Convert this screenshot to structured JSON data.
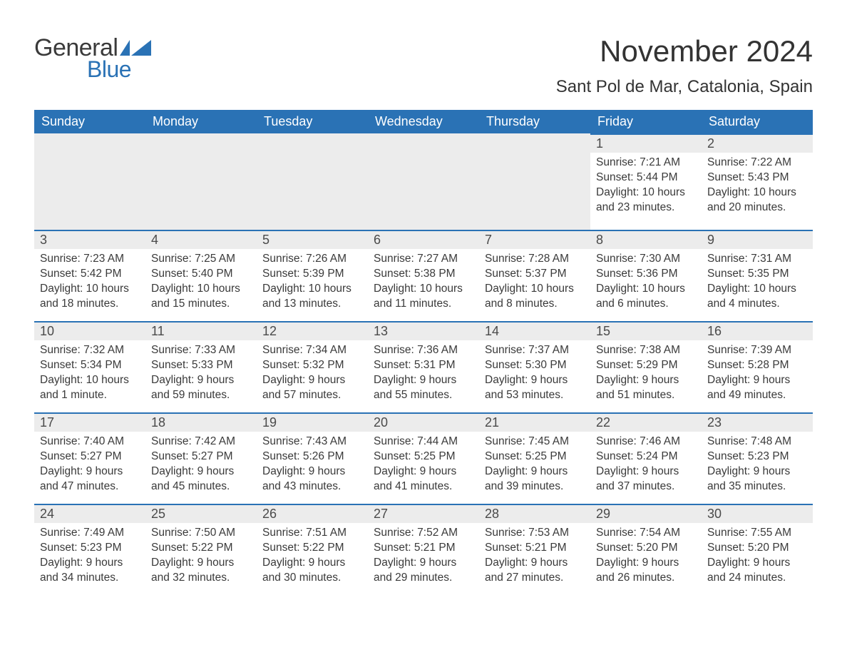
{
  "brand": {
    "general": "General",
    "blue": "Blue"
  },
  "title": "November 2024",
  "location": "Sant Pol de Mar, Catalonia, Spain",
  "colors": {
    "header_bg": "#2a72b5",
    "header_text": "#ffffff",
    "daynum_bg": "#ececec",
    "border_top": "#2a72b5",
    "body_text": "#3a3a3a",
    "page_bg": "#ffffff",
    "logo_blue": "#2a72b5"
  },
  "weekdays": [
    "Sunday",
    "Monday",
    "Tuesday",
    "Wednesday",
    "Thursday",
    "Friday",
    "Saturday"
  ],
  "weeks": [
    [
      null,
      null,
      null,
      null,
      null,
      {
        "n": "1",
        "sr": "Sunrise: 7:21 AM",
        "ss": "Sunset: 5:44 PM",
        "dl": "Daylight: 10 hours and 23 minutes."
      },
      {
        "n": "2",
        "sr": "Sunrise: 7:22 AM",
        "ss": "Sunset: 5:43 PM",
        "dl": "Daylight: 10 hours and 20 minutes."
      }
    ],
    [
      {
        "n": "3",
        "sr": "Sunrise: 7:23 AM",
        "ss": "Sunset: 5:42 PM",
        "dl": "Daylight: 10 hours and 18 minutes."
      },
      {
        "n": "4",
        "sr": "Sunrise: 7:25 AM",
        "ss": "Sunset: 5:40 PM",
        "dl": "Daylight: 10 hours and 15 minutes."
      },
      {
        "n": "5",
        "sr": "Sunrise: 7:26 AM",
        "ss": "Sunset: 5:39 PM",
        "dl": "Daylight: 10 hours and 13 minutes."
      },
      {
        "n": "6",
        "sr": "Sunrise: 7:27 AM",
        "ss": "Sunset: 5:38 PM",
        "dl": "Daylight: 10 hours and 11 minutes."
      },
      {
        "n": "7",
        "sr": "Sunrise: 7:28 AM",
        "ss": "Sunset: 5:37 PM",
        "dl": "Daylight: 10 hours and 8 minutes."
      },
      {
        "n": "8",
        "sr": "Sunrise: 7:30 AM",
        "ss": "Sunset: 5:36 PM",
        "dl": "Daylight: 10 hours and 6 minutes."
      },
      {
        "n": "9",
        "sr": "Sunrise: 7:31 AM",
        "ss": "Sunset: 5:35 PM",
        "dl": "Daylight: 10 hours and 4 minutes."
      }
    ],
    [
      {
        "n": "10",
        "sr": "Sunrise: 7:32 AM",
        "ss": "Sunset: 5:34 PM",
        "dl": "Daylight: 10 hours and 1 minute."
      },
      {
        "n": "11",
        "sr": "Sunrise: 7:33 AM",
        "ss": "Sunset: 5:33 PM",
        "dl": "Daylight: 9 hours and 59 minutes."
      },
      {
        "n": "12",
        "sr": "Sunrise: 7:34 AM",
        "ss": "Sunset: 5:32 PM",
        "dl": "Daylight: 9 hours and 57 minutes."
      },
      {
        "n": "13",
        "sr": "Sunrise: 7:36 AM",
        "ss": "Sunset: 5:31 PM",
        "dl": "Daylight: 9 hours and 55 minutes."
      },
      {
        "n": "14",
        "sr": "Sunrise: 7:37 AM",
        "ss": "Sunset: 5:30 PM",
        "dl": "Daylight: 9 hours and 53 minutes."
      },
      {
        "n": "15",
        "sr": "Sunrise: 7:38 AM",
        "ss": "Sunset: 5:29 PM",
        "dl": "Daylight: 9 hours and 51 minutes."
      },
      {
        "n": "16",
        "sr": "Sunrise: 7:39 AM",
        "ss": "Sunset: 5:28 PM",
        "dl": "Daylight: 9 hours and 49 minutes."
      }
    ],
    [
      {
        "n": "17",
        "sr": "Sunrise: 7:40 AM",
        "ss": "Sunset: 5:27 PM",
        "dl": "Daylight: 9 hours and 47 minutes."
      },
      {
        "n": "18",
        "sr": "Sunrise: 7:42 AM",
        "ss": "Sunset: 5:27 PM",
        "dl": "Daylight: 9 hours and 45 minutes."
      },
      {
        "n": "19",
        "sr": "Sunrise: 7:43 AM",
        "ss": "Sunset: 5:26 PM",
        "dl": "Daylight: 9 hours and 43 minutes."
      },
      {
        "n": "20",
        "sr": "Sunrise: 7:44 AM",
        "ss": "Sunset: 5:25 PM",
        "dl": "Daylight: 9 hours and 41 minutes."
      },
      {
        "n": "21",
        "sr": "Sunrise: 7:45 AM",
        "ss": "Sunset: 5:25 PM",
        "dl": "Daylight: 9 hours and 39 minutes."
      },
      {
        "n": "22",
        "sr": "Sunrise: 7:46 AM",
        "ss": "Sunset: 5:24 PM",
        "dl": "Daylight: 9 hours and 37 minutes."
      },
      {
        "n": "23",
        "sr": "Sunrise: 7:48 AM",
        "ss": "Sunset: 5:23 PM",
        "dl": "Daylight: 9 hours and 35 minutes."
      }
    ],
    [
      {
        "n": "24",
        "sr": "Sunrise: 7:49 AM",
        "ss": "Sunset: 5:23 PM",
        "dl": "Daylight: 9 hours and 34 minutes."
      },
      {
        "n": "25",
        "sr": "Sunrise: 7:50 AM",
        "ss": "Sunset: 5:22 PM",
        "dl": "Daylight: 9 hours and 32 minutes."
      },
      {
        "n": "26",
        "sr": "Sunrise: 7:51 AM",
        "ss": "Sunset: 5:22 PM",
        "dl": "Daylight: 9 hours and 30 minutes."
      },
      {
        "n": "27",
        "sr": "Sunrise: 7:52 AM",
        "ss": "Sunset: 5:21 PM",
        "dl": "Daylight: 9 hours and 29 minutes."
      },
      {
        "n": "28",
        "sr": "Sunrise: 7:53 AM",
        "ss": "Sunset: 5:21 PM",
        "dl": "Daylight: 9 hours and 27 minutes."
      },
      {
        "n": "29",
        "sr": "Sunrise: 7:54 AM",
        "ss": "Sunset: 5:20 PM",
        "dl": "Daylight: 9 hours and 26 minutes."
      },
      {
        "n": "30",
        "sr": "Sunrise: 7:55 AM",
        "ss": "Sunset: 5:20 PM",
        "dl": "Daylight: 9 hours and 24 minutes."
      }
    ]
  ]
}
